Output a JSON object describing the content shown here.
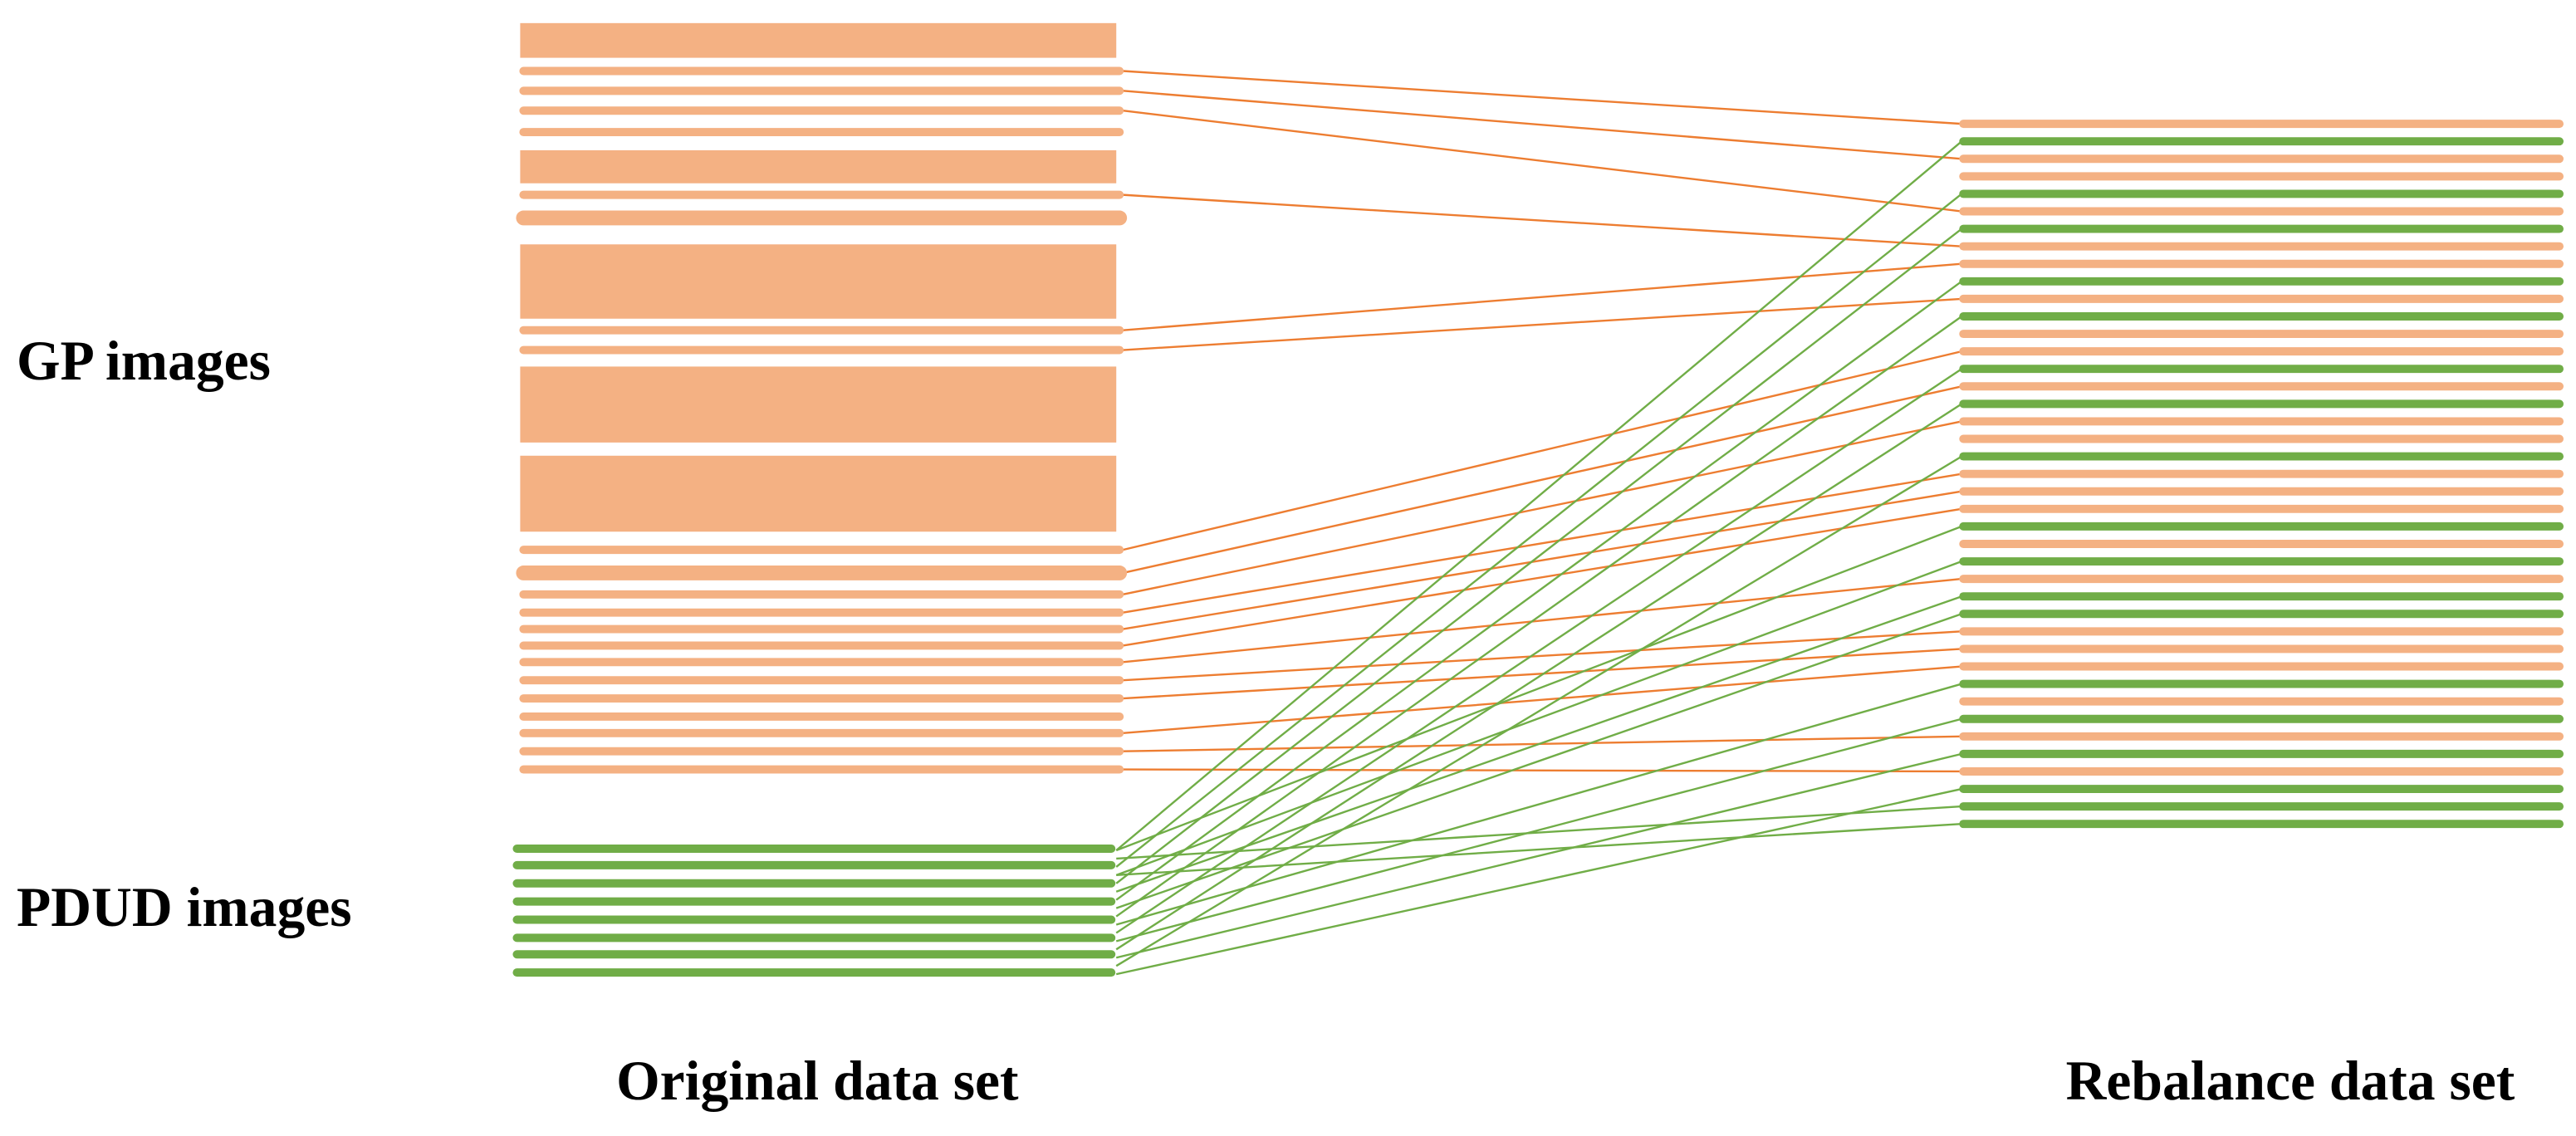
{
  "labels": {
    "gp": "GP images",
    "pdud": "PDUD images",
    "original": "Original data set",
    "rebalance": "Rebalance data set"
  }
}
